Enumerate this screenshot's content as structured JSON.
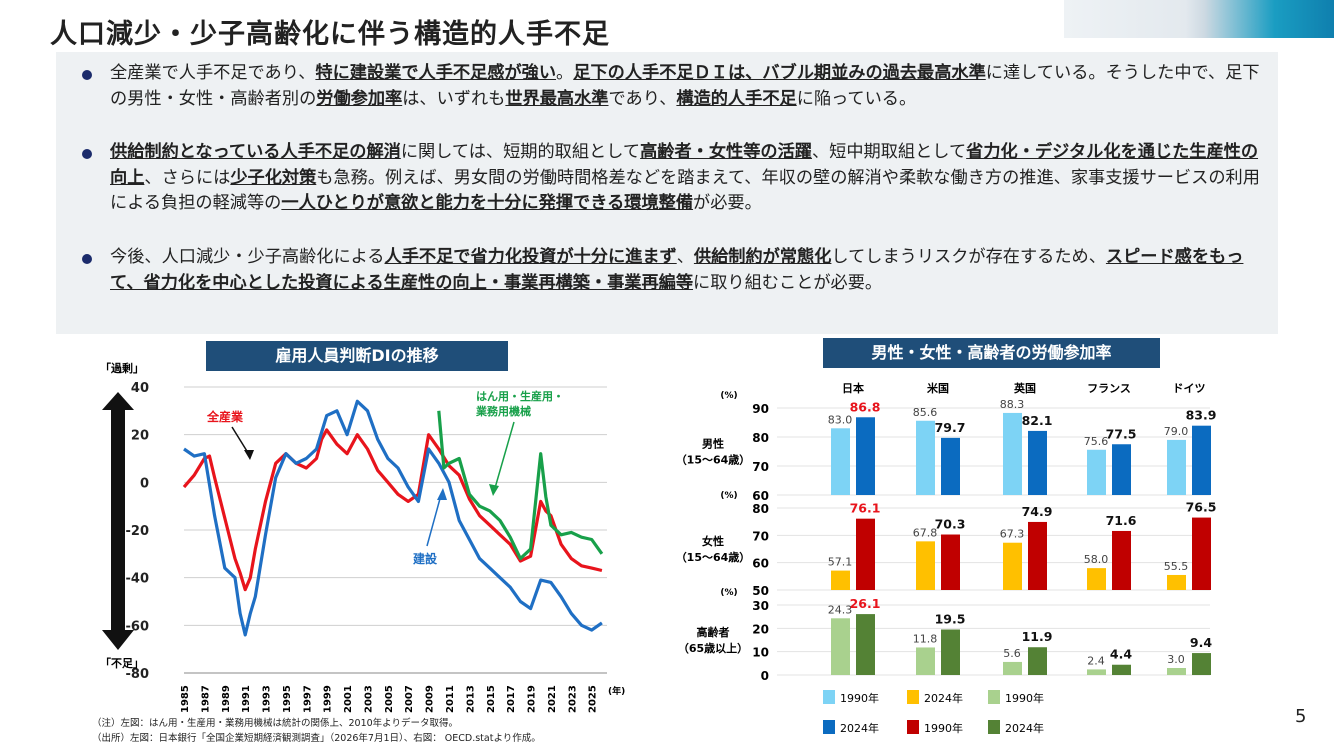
{
  "title": "人口減少・少子高齢化に伴う構造的人手不足",
  "page_number": "5",
  "bullets": [
    [
      {
        "t": "全産業で人手不足であり、"
      },
      {
        "t": "特に建設業で人手不足感が強い",
        "b": true
      },
      {
        "t": "。"
      },
      {
        "t": "足下の人手不足ＤＩは、バブル期並みの過去最高水準",
        "b": true
      },
      {
        "t": "に達している。そうした中で、足下の男性・女性・高齢者別の"
      },
      {
        "t": "労働参加率",
        "b": true
      },
      {
        "t": "は、いずれも"
      },
      {
        "t": "世界最高水準",
        "b": true
      },
      {
        "t": "であり、"
      },
      {
        "t": "構造的人手不足",
        "b": true
      },
      {
        "t": "に陥っている。"
      }
    ],
    [
      {
        "t": "供給制約となっている人手不足の解消",
        "b": true
      },
      {
        "t": "に関しては、短期的取組として"
      },
      {
        "t": "高齢者・女性等の活躍",
        "b": true
      },
      {
        "t": "、短中期取組として"
      },
      {
        "t": "省力化・デジタル化を通じた生産性の向上",
        "b": true
      },
      {
        "t": "、さらには"
      },
      {
        "t": "少子化対策",
        "b": true
      },
      {
        "t": "も急務。例えば、男女間の労働時間格差などを踏まえて、年収の壁の解消や柔軟な働き方の推進、家事支援サービスの利用による負担の軽減等の"
      },
      {
        "t": "一人ひとりが意欲と能力を十分に発揮できる環境整備",
        "b": true
      },
      {
        "t": "が必要。"
      }
    ],
    [
      {
        "t": "今後、人口減少・少子高齢化による"
      },
      {
        "t": "人手不足で省力化投資が十分に進まず",
        "b": true
      },
      {
        "t": "、"
      },
      {
        "t": "供給制約が常態化",
        "b": true
      },
      {
        "t": "してしまうリスクが存在するため、"
      },
      {
        "t": "スピード感をもって、省力化を中心とした投資による生産性の向上・事業再構築・事業再編等",
        "b": true
      },
      {
        "t": "に取り組むことが必要。"
      }
    ]
  ],
  "left_chart_title": "雇用人員判断DIの推移",
  "right_chart_title": "男性・女性・高齢者の労働参加率",
  "notes": [
    "（注）左図：はん用・生産用・業務用機械は統計の関係上、2010年よりデータ取得。",
    "（出所）左図：日本銀行「全国企業短期経済観測調査」（2026年7月1日）、右図： OECD.statより作成。"
  ],
  "chart_data": [
    {
      "type": "line",
      "title": "雇用人員判断DIの推移",
      "xlabel": "(年)",
      "ylabel": "",
      "ylim": [
        -80,
        40
      ],
      "xlim": [
        1985,
        2026.5
      ],
      "y_ticks": [
        "40",
        "20",
        "0",
        "-20",
        "-40",
        "-60",
        "-80"
      ],
      "x_ticks": [
        "1985",
        "1987",
        "1989",
        "1991",
        "1993",
        "1995",
        "1997",
        "1999",
        "2001",
        "2003",
        "2005",
        "2007",
        "2009",
        "2011",
        "2013",
        "2015",
        "2017",
        "2019",
        "2021",
        "2023",
        "2025"
      ],
      "axis_top_label": "「過剰」",
      "axis_bottom_label": "「不足」",
      "grid": true,
      "series": [
        {
          "name": "全産業",
          "color": "#e8141c",
          "x": [
            1985,
            1986,
            1987,
            1987.5,
            1988,
            1989,
            1990,
            1990.5,
            1991,
            1991.5,
            1992,
            1993,
            1994,
            1995,
            1996,
            1997,
            1998,
            1998.5,
            1999,
            2000,
            2001,
            2002,
            2003,
            2004,
            2005,
            2006,
            2007,
            2008,
            2009,
            2010,
            2011,
            2012,
            2013,
            2014,
            2015,
            2016,
            2017,
            2018,
            2019,
            2020,
            2020.5,
            2021,
            2022,
            2023,
            2024,
            2025,
            2026
          ],
          "y": [
            -2,
            3,
            10,
            11,
            2,
            -15,
            -32,
            -38,
            -45,
            -40,
            -28,
            -8,
            8,
            12,
            8,
            6,
            10,
            18,
            22,
            16,
            12,
            20,
            14,
            5,
            0,
            -5,
            -8,
            -5,
            20,
            14,
            7,
            3,
            -7,
            -14,
            -18,
            -22,
            -26,
            -33,
            -31,
            -8,
            -12,
            -14,
            -26,
            -32,
            -35,
            -36,
            -37
          ]
        },
        {
          "name": "建設",
          "color": "#1f6fc4",
          "x": [
            1985,
            1986,
            1987,
            1988,
            1989,
            1990,
            1990.5,
            1991,
            1991.5,
            1992,
            1993,
            1994,
            1995,
            1996,
            1997,
            1998,
            1999,
            2000,
            2001,
            2002,
            2003,
            2004,
            2005,
            2006,
            2007,
            2008,
            2009,
            2010,
            2011,
            2012,
            2013,
            2014,
            2015,
            2016,
            2017,
            2018,
            2019,
            2020,
            2021,
            2022,
            2023,
            2024,
            2025,
            2026
          ],
          "y": [
            14,
            11,
            12,
            -14,
            -36,
            -40,
            -55,
            -64,
            -55,
            -48,
            -22,
            2,
            12,
            8,
            10,
            14,
            28,
            30,
            20,
            34,
            30,
            18,
            10,
            6,
            -2,
            -8,
            14,
            8,
            0,
            -16,
            -24,
            -32,
            -36,
            -40,
            -44,
            -50,
            -53,
            -41,
            -42,
            -48,
            -55,
            -60,
            -62,
            -59
          ]
        },
        {
          "name": "はん用・生産用・業務用機械",
          "color": "#18a04a",
          "x": [
            2010,
            2010.5,
            2011,
            2012,
            2013,
            2014,
            2015,
            2016,
            2017,
            2018,
            2019,
            2020,
            2020.5,
            2021,
            2022,
            2023,
            2024,
            2025,
            2026
          ],
          "y": [
            30,
            6,
            8,
            10,
            -5,
            -10,
            -12,
            -16,
            -23,
            -32,
            -28,
            12,
            -6,
            -18,
            -22,
            -21,
            -23,
            -24,
            -30
          ]
        }
      ],
      "annotations": [
        "全産業",
        "はん用・生産用・業務用機械",
        "建設"
      ]
    },
    {
      "type": "bar",
      "title": "男性・女性・高齢者の労働参加率",
      "categories": [
        "日本",
        "米国",
        "英国",
        "フランス",
        "ドイツ"
      ],
      "unit": "(%)",
      "legend": [
        "1990年",
        "2024年",
        "1990年",
        "2024年",
        "1990年",
        "2024年"
      ],
      "panels": [
        {
          "label": "男性（15〜64歳）",
          "ylim": [
            60,
            90
          ],
          "ticks": [
            "90",
            "80",
            "70",
            "60"
          ],
          "colors": [
            "#7dd3f5",
            "#0b6bc0"
          ],
          "series": [
            {
              "name": "1990年",
              "values": [
                83.0,
                85.6,
                88.3,
                75.6,
                79.0
              ]
            },
            {
              "name": "2024年",
              "values": [
                86.8,
                79.7,
                82.1,
                77.5,
                83.9
              ]
            }
          ],
          "labels_1990": [
            "83.0",
            "85.6",
            "88.3",
            "75.6",
            "79.0"
          ],
          "labels_2024": [
            "86.8",
            "79.7",
            "82.1",
            "77.5",
            "83.9"
          ]
        },
        {
          "label": "女性（15〜64歳）",
          "ylim": [
            50,
            80
          ],
          "ticks": [
            "80",
            "70",
            "60",
            "50"
          ],
          "colors": [
            "#ffc000",
            "#c00000"
          ],
          "series": [
            {
              "name": "1990年",
              "values": [
                57.1,
                67.8,
                67.3,
                58.0,
                55.5
              ]
            },
            {
              "name": "2024年",
              "values": [
                76.1,
                70.3,
                74.9,
                71.6,
                76.5
              ]
            }
          ],
          "labels_1990": [
            "57.1",
            "67.8",
            "67.3",
            "58.0",
            "55.5"
          ],
          "labels_2024": [
            "76.1",
            "70.3",
            "74.9",
            "71.6",
            "76.5"
          ]
        },
        {
          "label": "高齢者（65歳以上）",
          "ylim": [
            0,
            30
          ],
          "ticks": [
            "30",
            "20",
            "10",
            "0"
          ],
          "colors": [
            "#a9d18e",
            "#548235"
          ],
          "series": [
            {
              "name": "1990年",
              "values": [
                24.3,
                11.8,
                5.6,
                2.4,
                3.0
              ]
            },
            {
              "name": "2024年",
              "values": [
                26.1,
                19.5,
                11.9,
                4.4,
                9.4
              ]
            }
          ],
          "labels_1990": [
            "24.3",
            "11.8",
            "5.6",
            "2.4",
            "3.0"
          ],
          "labels_2024": [
            "26.1",
            "19.5",
            "11.9",
            "4.4",
            "9.4"
          ]
        }
      ]
    }
  ]
}
